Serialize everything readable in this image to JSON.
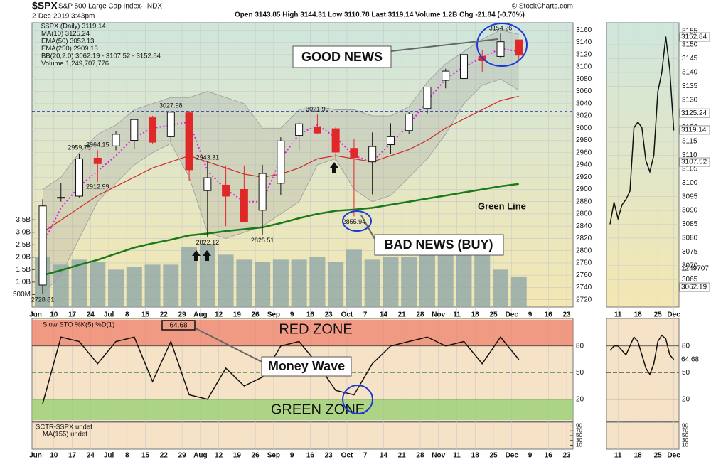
{
  "header": {
    "symbol": "$SPX",
    "name": "S&P 500 Large Cap Index· INDX",
    "date": "2-Dec-2019 3:43pm",
    "quote": "Open 3143.85  High 3144.31  Low 3110.78  Last 3119.14  Volume 1.2B  Chg -21.84 (-0.70%)",
    "credit": "© StockCharts.com"
  },
  "chart_data": [
    {
      "type": "candlestick",
      "name": "$SPX (Daily) 3119.14",
      "categories": [
        "Jun",
        "10",
        "17",
        "24",
        "Jul",
        "8",
        "15",
        "22",
        "29",
        "Aug",
        "12",
        "19",
        "26",
        "Sep",
        "9",
        "16",
        "23",
        "Oct",
        "7",
        "14",
        "21",
        "28",
        "Nov",
        "11",
        "18",
        "25",
        "Dec",
        "9",
        "16",
        "23"
      ],
      "open": [
        2744,
        2886,
        2889,
        2951,
        2971,
        2980,
        3017,
        2986,
        3025,
        2898,
        2907,
        2900,
        2866,
        2910,
        2988,
        3001,
        2999,
        2967,
        2945,
        2973,
        2996,
        3032,
        3078,
        3081,
        3117,
        3117,
        3144,
        null,
        null,
        null
      ],
      "high": [
        2884,
        2910,
        2958,
        2964,
        2995,
        3014,
        3020,
        3028,
        3028,
        2945,
        2939,
        2939,
        2940,
        2985,
        3010,
        3022,
        3002,
        2983,
        2993,
        3008,
        3027,
        3066,
        3097,
        3120,
        3127,
        3154.26,
        3144,
        null,
        null,
        null
      ],
      "low": [
        2728.81,
        2880,
        2887,
        2912,
        2964,
        2966,
        2975,
        2977,
        2914,
        2822,
        2840,
        2847,
        2825,
        2891,
        2964,
        2990,
        2946,
        2856,
        2892,
        2958,
        2991,
        3024,
        3065,
        3075,
        3091,
        3114,
        3111,
        null,
        null,
        null
      ],
      "close": [
        2873,
        2887,
        2950,
        2942,
        2990,
        3014,
        2977,
        3026,
        2932,
        2919,
        2889,
        2847,
        2926,
        2979,
        3007,
        2992,
        2961,
        2952,
        2970,
        2986,
        3023,
        3067,
        3093,
        3120,
        3110,
        3141,
        3119,
        null,
        null,
        null
      ],
      "up_color": "#ffffff",
      "down_color": "#e02828",
      "series": [
        {
          "name": "MA(10) 3125.24",
          "color": "#e020e0",
          "style": "dotted",
          "values": [
            2810,
            2870,
            2905,
            2930,
            2955,
            2985,
            3000,
            3005,
            3010,
            2930,
            2900,
            2880,
            2880,
            2950,
            2990,
            3005,
            2985,
            2955,
            2945,
            2975,
            3005,
            3045,
            3080,
            3100,
            3115,
            3130,
            3125,
            null,
            null,
            null
          ]
        },
        {
          "name": "EMA(50) 3052.13",
          "color": "#d02828",
          "style": "solid",
          "values": [
            2830,
            2850,
            2870,
            2890,
            2905,
            2920,
            2935,
            2945,
            2955,
            2945,
            2935,
            2925,
            2920,
            2925,
            2935,
            2950,
            2955,
            2950,
            2945,
            2955,
            2965,
            2980,
            3000,
            3015,
            3030,
            3045,
            3052,
            null,
            null,
            null
          ]
        },
        {
          "name": "EMA(250) 2909.13",
          "color": "#1a7a1a",
          "style": "thick",
          "values": [
            2760,
            2768,
            2777,
            2785,
            2795,
            2805,
            2812,
            2818,
            2825,
            2828,
            2832,
            2835,
            2838,
            2845,
            2853,
            2860,
            2865,
            2867,
            2870,
            2875,
            2880,
            2885,
            2890,
            2895,
            2900,
            2905,
            2909,
            null,
            null,
            null
          ]
        }
      ],
      "bands": {
        "name": "BB(20,2.0) 3062.19 - 3107.52 - 3152.84",
        "color": "#9a9a9a",
        "upper": [
          2900,
          2920,
          2960,
          2990,
          3005,
          3030,
          3040,
          3050,
          3050,
          3060,
          3050,
          3040,
          3000,
          3000,
          3030,
          3035,
          3030,
          3030,
          3020,
          3020,
          3035,
          3075,
          3105,
          3125,
          3145,
          3160,
          3153,
          null,
          null,
          null
        ],
        "lower": [
          2730,
          2760,
          2820,
          2880,
          2910,
          2940,
          2960,
          2975,
          2920,
          2830,
          2820,
          2830,
          2840,
          2860,
          2880,
          2940,
          2950,
          2900,
          2880,
          2890,
          2920,
          2950,
          2990,
          3040,
          3070,
          3080,
          3062,
          null,
          null,
          null
        ]
      },
      "volume": {
        "name": "Volume 1,249,707,776",
        "color": "#8ea8a8",
        "lim": [
          0,
          11.4
        ],
        "values": [
          2.0,
          1.7,
          1.9,
          1.8,
          1.5,
          1.6,
          1.7,
          1.7,
          2.4,
          2.5,
          2.1,
          1.9,
          1.8,
          1.9,
          1.9,
          2.0,
          1.8,
          2.3,
          1.9,
          2.0,
          2.0,
          2.1,
          2.1,
          2.1,
          2.1,
          1.5,
          1.2,
          null,
          null,
          null
        ],
        "ticks": [
          {
            "value": 0.5,
            "label": "500M"
          },
          {
            "value": 1,
            "label": "1.0B"
          },
          {
            "value": 1.5,
            "label": "1.5B"
          },
          {
            "value": 2,
            "label": "2.0B"
          },
          {
            "value": 2.5,
            "label": "2.5B"
          },
          {
            "value": 3,
            "label": "3.0B"
          },
          {
            "value": 3.5,
            "label": "3.5B"
          }
        ]
      },
      "ylim": [
        2708,
        3172
      ],
      "yticks": [
        2720,
        2740,
        2760,
        2780,
        2800,
        2820,
        2840,
        2860,
        2880,
        2900,
        2920,
        2940,
        2960,
        2980,
        3000,
        3020,
        3040,
        3060,
        3080,
        3100,
        3120,
        3140,
        3160
      ],
      "grid": true,
      "reference_line": 3027,
      "reference_color": "#1a2aa8",
      "peak_labels": [
        3154.26,
        3027.98,
        3021.99,
        2964.15,
        2943.31,
        2959.75
      ],
      "trough_labels": [
        2912.99,
        2855.94,
        2822.12,
        2825.51,
        2728.81
      ],
      "annotations": {
        "good": "GOOD NEWS",
        "bad": "BAD NEWS (BUY)",
        "green": "Green Line"
      }
    },
    {
      "type": "line",
      "name": "Slow STO %K(5) %D(1)",
      "color": "#111111",
      "values": [
        15,
        90,
        85,
        60,
        85,
        90,
        40,
        85,
        25,
        20,
        55,
        35,
        45,
        80,
        85,
        60,
        30,
        25,
        60,
        80,
        85,
        90,
        80,
        85,
        60,
        90,
        64.68,
        null,
        null,
        null
      ],
      "ylim": [
        -5,
        111
      ],
      "yticks": [
        20,
        50,
        80
      ],
      "zones": {
        "red": "RED ZONE",
        "green": "GREEN ZONE"
      },
      "annotation": "Money Wave",
      "sctr": {
        "names": [
          "SCTR-$SPX undef",
          "MA(155) undef"
        ],
        "ylim": [
          0,
          100
        ],
        "yticks": [
          10,
          30,
          50,
          70,
          90
        ]
      }
    },
    {
      "type": "line",
      "color": "#111111",
      "categories": [
        null,
        null,
        "11",
        null,
        null,
        null,
        null,
        "18",
        null,
        null,
        null,
        null,
        "25",
        null,
        null,
        null,
        "Dec"
      ],
      "values": [
        3085,
        3093,
        3087,
        3092,
        3094,
        3097,
        3120,
        3122,
        3120,
        3108,
        3104,
        3110,
        3133,
        3140,
        3153,
        3141,
        3119
      ],
      "ylim": [
        3055,
        3158
      ],
      "yticks": [
        3065,
        3070,
        3075,
        3080,
        3085,
        3090,
        3095,
        3100,
        3105,
        3110,
        3115,
        3120,
        3125,
        3130,
        3135,
        3140,
        3145,
        3150,
        3155
      ],
      "tags": [
        3152.84,
        3125.24,
        3119.14,
        3107.52,
        3062.19
      ],
      "volume_tag": 1249707
    },
    {
      "type": "line",
      "color": "#111111",
      "values": [
        75,
        80,
        80,
        75,
        70,
        80,
        90,
        85,
        70,
        55,
        48,
        60,
        85,
        92,
        88,
        70,
        64.68
      ],
      "ylim": [
        -5,
        111
      ],
      "yticks": [
        20,
        50,
        80
      ],
      "sctr_yticks": [
        10,
        30,
        50,
        70,
        90
      ]
    }
  ]
}
